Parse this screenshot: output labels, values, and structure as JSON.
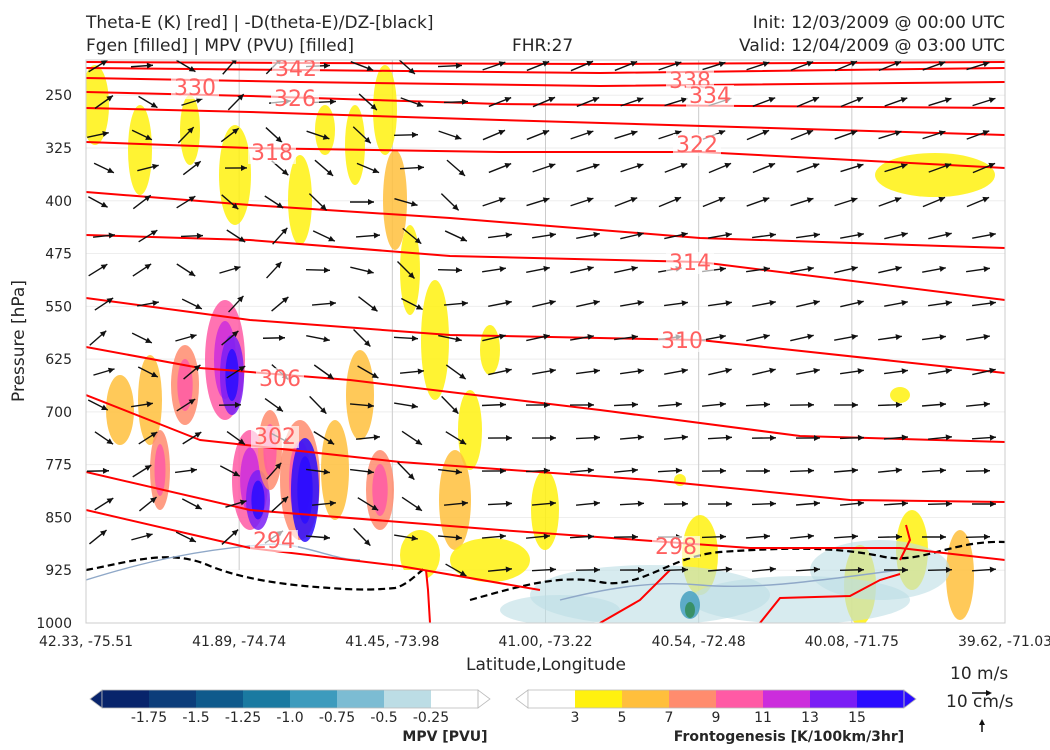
{
  "header": {
    "title_left_1": "Theta-E (K) [red] | -D(theta-E)/DZ-[black]",
    "title_left_2": "Fgen [filled] | MPV (PVU) [filled]",
    "title_center": "FHR:27",
    "title_right_1": "Init: 12/03/2009 @ 00:00 UTC",
    "title_right_2": "Valid: 12/04/2009 @ 03:00 UTC"
  },
  "chart_data": {
    "type": "cross-section contour",
    "xlabel": "Latitude,Longitude",
    "ylabel": "Pressure [hPa]",
    "x_tick_labels": [
      "42.33, -75.51",
      "41.89, -74.74",
      "41.45, -73.98",
      "41.00, -73.22",
      "40.54, -72.48",
      "40.08, -71.75",
      "39.62, -71.03"
    ],
    "y_ticks": [
      250,
      325,
      400,
      475,
      550,
      625,
      700,
      775,
      850,
      925,
      1000
    ],
    "ylim": [
      1000,
      200
    ],
    "y_scale": "linear, inverted",
    "grid": true,
    "theta_e_contours": [
      {
        "level": 342,
        "label": "342"
      },
      {
        "level": 338,
        "label": "338"
      },
      {
        "level": 334,
        "label": "334"
      },
      {
        "level": 330,
        "label": "330"
      },
      {
        "level": 326,
        "label": "326"
      },
      {
        "level": 322,
        "label": "322"
      },
      {
        "level": 318,
        "label": "318"
      },
      {
        "level": 314,
        "label": "314"
      },
      {
        "level": 310,
        "label": "310"
      },
      {
        "level": 306,
        "label": "306"
      },
      {
        "level": 302,
        "label": "302"
      },
      {
        "level": 298,
        "label": "298"
      },
      {
        "level": 294,
        "label": "294"
      }
    ],
    "mpv_colorbar": {
      "title": "MPV [PVU]",
      "ticks": [
        "-1.75",
        "-1.5",
        "-1.25",
        "-1.0",
        "-0.75",
        "-0.5",
        "-0.25"
      ],
      "colors": [
        "#08246b",
        "#0c3d7a",
        "#0f5a8c",
        "#1a7aa1",
        "#3d9bbd",
        "#7cbcd3",
        "#bcdde5",
        "#ffffff"
      ]
    },
    "fgen_colorbar": {
      "title": "Frontogenesis [K/100km/3hr]",
      "ticks": [
        "3",
        "5",
        "7",
        "9",
        "11",
        "13",
        "15"
      ],
      "colors": [
        "#ffffff",
        "#fff10f",
        "#ffbf3c",
        "#ff8c6e",
        "#ff5aa5",
        "#cc2ddc",
        "#7a1ef5",
        "#2a0cff"
      ]
    },
    "reference_vectors": {
      "horizontal": "10 m/s",
      "vertical": "10 cm/s"
    }
  }
}
